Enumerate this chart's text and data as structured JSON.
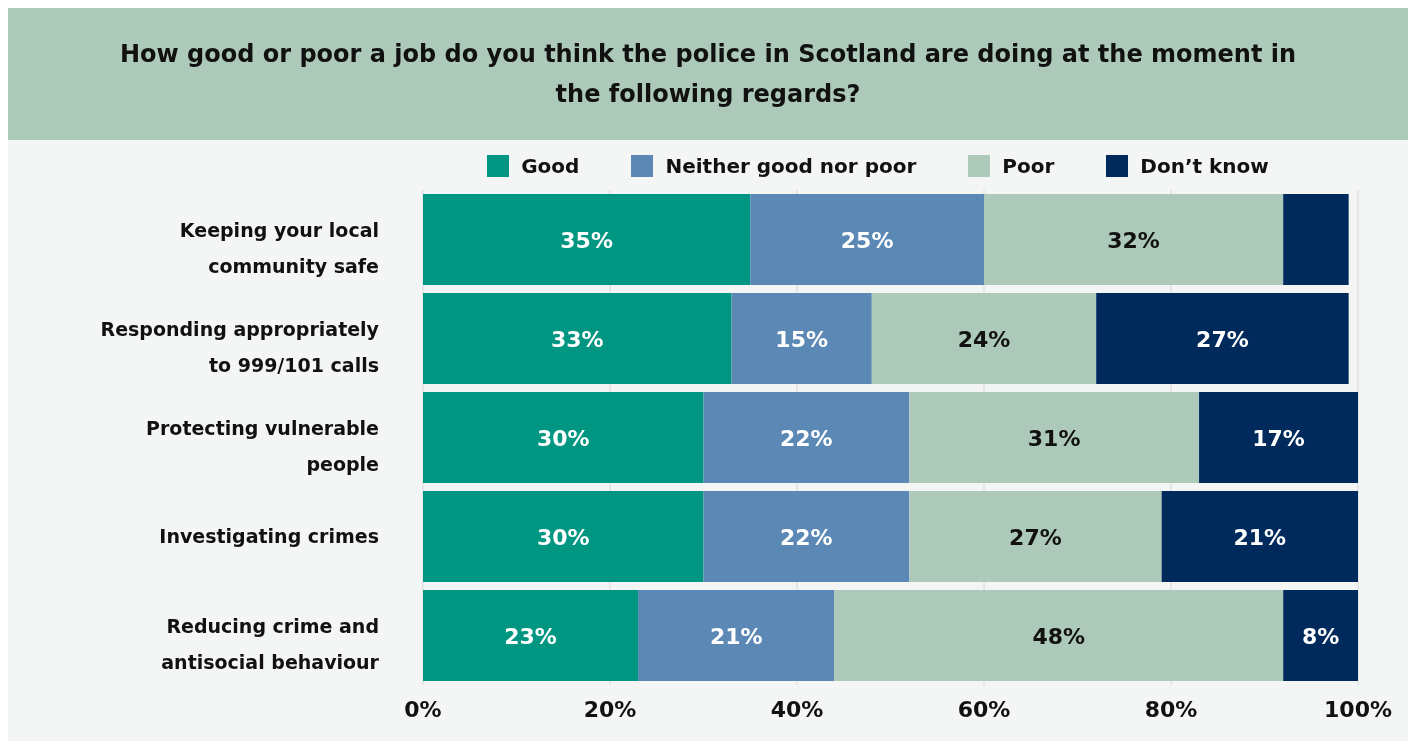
{
  "chart_data": {
    "type": "bar",
    "orientation": "horizontal",
    "stacked": true,
    "title": "How good or poor a job do you think the police in Scotland are doing at the moment in the following regards?",
    "categories": [
      "Keeping your local community safe",
      "Responding appropriately to 999/101 calls",
      "Protecting vulnerable people",
      "Investigating crimes",
      "Reducing crime and antisocial behaviour"
    ],
    "series": [
      {
        "name": "Good",
        "color": "#009682",
        "values": [
          35,
          33,
          30,
          30,
          23
        ],
        "value_labels": [
          "35%",
          "33%",
          "30%",
          "30%",
          "23%"
        ]
      },
      {
        "name": "Neither good nor poor",
        "color": "#5b88b5",
        "values": [
          25,
          15,
          22,
          22,
          21
        ],
        "value_labels": [
          "25%",
          "15%",
          "22%",
          "22%",
          "21%"
        ]
      },
      {
        "name": "Poor",
        "color": "#adc9b9",
        "values": [
          32,
          24,
          31,
          27,
          48
        ],
        "value_labels": [
          "32%",
          "24%",
          "31%",
          "27%",
          "48%"
        ]
      },
      {
        "name": "Don’t know",
        "color": "#002a5c",
        "values": [
          7,
          27,
          17,
          21,
          8
        ],
        "value_labels": [
          null,
          "27%",
          "17%",
          "21%",
          "8%"
        ]
      }
    ],
    "xlim": [
      0,
      100
    ],
    "xticks": [
      {
        "value": 0,
        "label": "0%"
      },
      {
        "value": 20,
        "label": "20%"
      },
      {
        "value": 40,
        "label": "40%"
      },
      {
        "value": 60,
        "label": "60%"
      },
      {
        "value": 80,
        "label": "80%"
      },
      {
        "value": 100,
        "label": "100%"
      }
    ],
    "grid": "x",
    "legend": "top"
  }
}
